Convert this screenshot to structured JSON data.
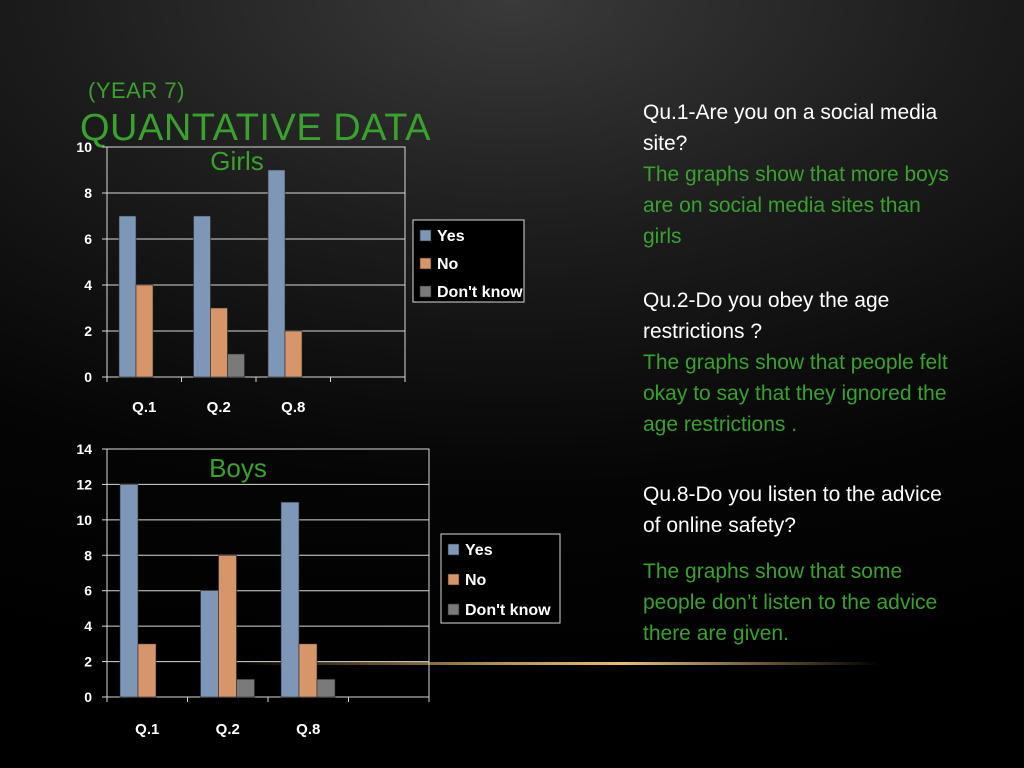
{
  "slide": {
    "subtitle": "(YEAR 7)",
    "title": "QUANTATIVE DATA"
  },
  "questions": [
    {
      "q": "Qu.1-Are you on a social media site?",
      "a": "The graphs show that more boys are on social media sites than girls"
    },
    {
      "q": "Qu.2-Do you obey the age restrictions ?",
      "a": "The graphs show that people felt okay to say that they ignored the age restrictions ."
    },
    {
      "q": "Qu.8-Do you listen to the advice of online safety?",
      "a": "The graphs show that some people don’t listen to the advice there are given."
    }
  ],
  "colors": {
    "yes": "#7f97b6",
    "no": "#d7956a",
    "dontknow": "#7a7a7a",
    "accent": "#3aa12e"
  },
  "chart_data": [
    {
      "type": "bar",
      "title": "Girls",
      "categories": [
        "Q.1",
        "Q.2",
        "Q.8",
        ""
      ],
      "series": [
        {
          "name": "Yes",
          "values": [
            7,
            7,
            9,
            0
          ]
        },
        {
          "name": "No",
          "values": [
            4,
            3,
            2,
            0
          ]
        },
        {
          "name": "Don't know",
          "values": [
            0,
            1,
            0,
            0
          ]
        }
      ],
      "ylim": [
        0,
        10
      ],
      "yticks": [
        0,
        2,
        4,
        6,
        8,
        10
      ],
      "grid": true,
      "legend": "right"
    },
    {
      "type": "bar",
      "title": "Boys",
      "categories": [
        "Q.1",
        "Q.2",
        "Q.8",
        ""
      ],
      "series": [
        {
          "name": "Yes",
          "values": [
            12,
            6,
            11,
            0
          ]
        },
        {
          "name": "No",
          "values": [
            3,
            8,
            3,
            0
          ]
        },
        {
          "name": "Don't know",
          "values": [
            0,
            1,
            1,
            0
          ]
        }
      ],
      "ylim": [
        0,
        14
      ],
      "yticks": [
        0,
        2,
        4,
        6,
        8,
        10,
        12,
        14
      ],
      "grid": true,
      "legend": "right"
    }
  ]
}
